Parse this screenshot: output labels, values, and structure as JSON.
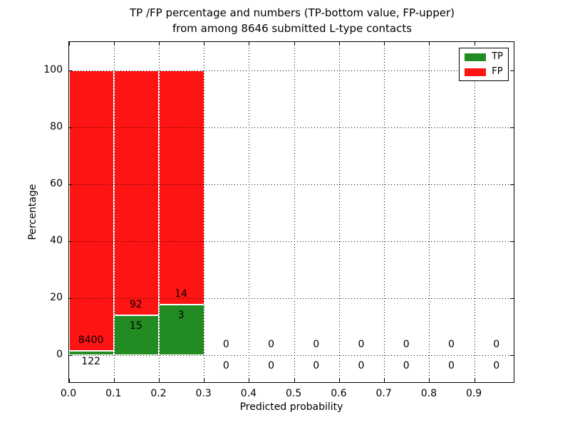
{
  "title": {
    "line1": "TP /FP percentage and numbers (TP-bottom value, FP-upper)",
    "line2": "from among 8646 submitted L-type contacts"
  },
  "chart_data": {
    "type": "bar",
    "stacked": true,
    "title": "TP /FP percentage and numbers (TP-bottom value, FP-upper) from among 8646 submitted L-type contacts",
    "xlabel": "Predicted probability",
    "ylabel": "Percentage",
    "xlim": [
      0,
      0.99
    ],
    "ylim": [
      -10,
      110
    ],
    "x_ticks": [
      0,
      0.1,
      0.2,
      0.3,
      0.4,
      0.5,
      0.6,
      0.7,
      0.8,
      0.9
    ],
    "x_tick_labels": [
      "0.0",
      "0.1",
      "0.2",
      "0.3",
      "0.4",
      "0.5",
      "0.6",
      "0.7",
      "0.8",
      "0.9"
    ],
    "y_ticks": [
      0,
      20,
      40,
      60,
      80,
      100
    ],
    "y_tick_labels": [
      "0",
      "20",
      "40",
      "60",
      "80",
      "100"
    ],
    "grid": true,
    "total_submitted": 8646,
    "colors": {
      "tp": "#228b22",
      "fp": "#ff1414"
    },
    "legend": {
      "position": "upper right",
      "entries": [
        {
          "label": "TP",
          "color": "#228b22"
        },
        {
          "label": "FP",
          "color": "#ff1414"
        }
      ]
    },
    "bins": [
      {
        "range": [
          0.0,
          0.1
        ],
        "tp": 122,
        "fp": 8400,
        "tp_pct": 1.43
      },
      {
        "range": [
          0.1,
          0.2
        ],
        "tp": 15,
        "fp": 92,
        "tp_pct": 14.02
      },
      {
        "range": [
          0.2,
          0.3
        ],
        "tp": 3,
        "fp": 14,
        "tp_pct": 17.65
      },
      {
        "range": [
          0.3,
          0.4
        ],
        "tp": 0,
        "fp": 0,
        "tp_pct": 0
      },
      {
        "range": [
          0.4,
          0.5
        ],
        "tp": 0,
        "fp": 0,
        "tp_pct": 0
      },
      {
        "range": [
          0.5,
          0.6
        ],
        "tp": 0,
        "fp": 0,
        "tp_pct": 0
      },
      {
        "range": [
          0.6,
          0.7
        ],
        "tp": 0,
        "fp": 0,
        "tp_pct": 0
      },
      {
        "range": [
          0.7,
          0.8
        ],
        "tp": 0,
        "fp": 0,
        "tp_pct": 0
      },
      {
        "range": [
          0.8,
          0.9
        ],
        "tp": 0,
        "fp": 0,
        "tp_pct": 0
      },
      {
        "range": [
          0.9,
          1.0
        ],
        "tp": 0,
        "fp": 0,
        "tp_pct": 0
      }
    ]
  }
}
